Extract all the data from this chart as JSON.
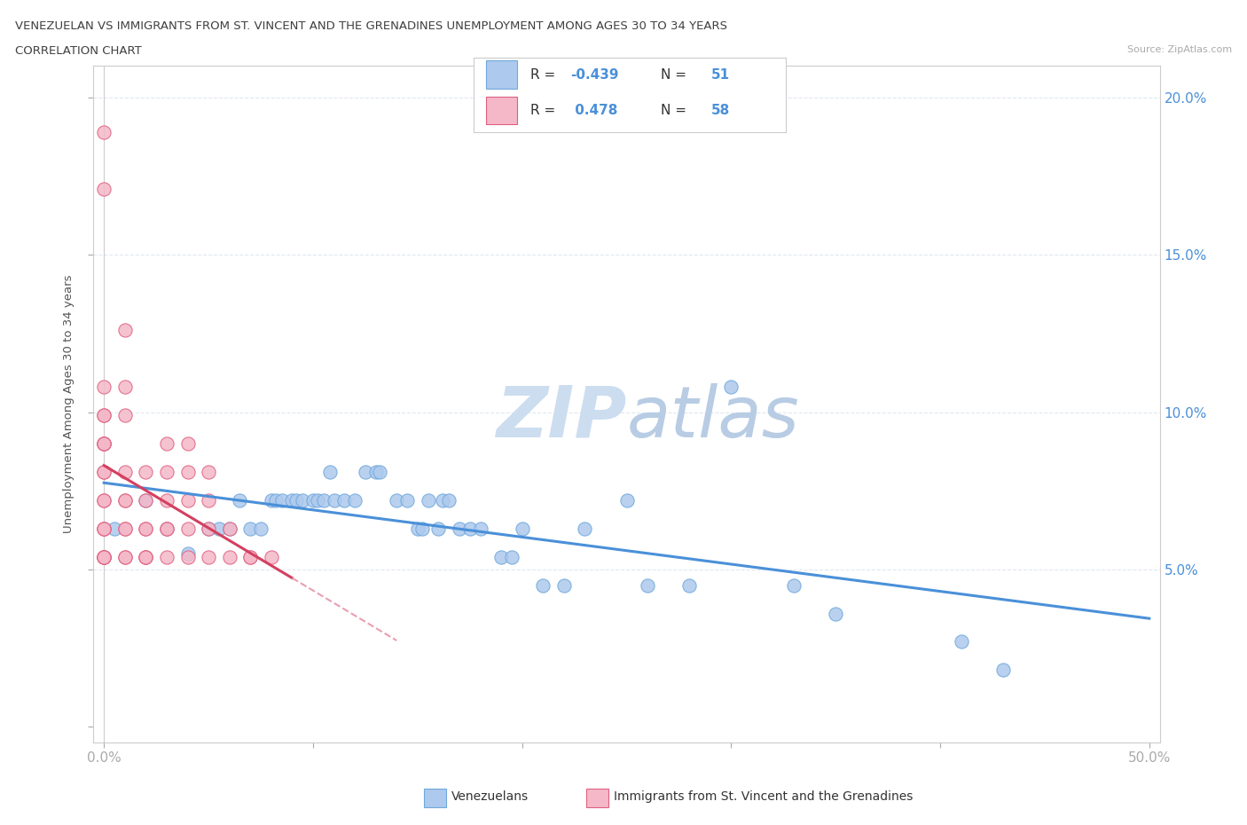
{
  "title_line1": "VENEZUELAN VS IMMIGRANTS FROM ST. VINCENT AND THE GRENADINES UNEMPLOYMENT AMONG AGES 30 TO 34 YEARS",
  "title_line2": "CORRELATION CHART",
  "source_text": "Source: ZipAtlas.com",
  "ylabel": "Unemployment Among Ages 30 to 34 years",
  "xlim": [
    -0.005,
    0.505
  ],
  "ylim": [
    -0.005,
    0.21
  ],
  "xticks": [
    0.0,
    0.1,
    0.2,
    0.3,
    0.4,
    0.5
  ],
  "xtick_labels": [
    "0.0%",
    "",
    "",
    "",
    "",
    "50.0%"
  ],
  "yticks_right": [
    0.05,
    0.1,
    0.15,
    0.2
  ],
  "ytick_labels_right": [
    "5.0%",
    "10.0%",
    "15.0%",
    "20.0%"
  ],
  "venezuelan_color": "#adc9ed",
  "venezuelan_edge": "#6fa8dc",
  "vincent_color": "#f4b8c8",
  "vincent_edge": "#e06080",
  "trend_venezuelan_color": "#4a90d9",
  "trend_vincent_solid_color": "#d44060",
  "trend_vincent_dash_color": "#e8a0b0",
  "watermark_color": "#ccddf0",
  "legend_r_venezuelan": "-0.439",
  "legend_n_venezuelan": "51",
  "legend_r_vincent": "0.478",
  "legend_n_vincent": "58",
  "venezuelan_x": [
    0.005,
    0.02,
    0.03,
    0.04,
    0.05,
    0.055,
    0.06,
    0.065,
    0.07,
    0.075,
    0.08,
    0.082,
    0.085,
    0.09,
    0.092,
    0.095,
    0.1,
    0.102,
    0.105,
    0.108,
    0.11,
    0.115,
    0.12,
    0.125,
    0.13,
    0.132,
    0.14,
    0.145,
    0.15,
    0.152,
    0.155,
    0.16,
    0.162,
    0.165,
    0.17,
    0.175,
    0.18,
    0.19,
    0.195,
    0.2,
    0.21,
    0.22,
    0.23,
    0.25,
    0.26,
    0.28,
    0.3,
    0.33,
    0.35,
    0.41,
    0.43
  ],
  "venezuelan_y": [
    0.063,
    0.072,
    0.063,
    0.055,
    0.063,
    0.063,
    0.063,
    0.072,
    0.063,
    0.063,
    0.072,
    0.072,
    0.072,
    0.072,
    0.072,
    0.072,
    0.072,
    0.072,
    0.072,
    0.081,
    0.072,
    0.072,
    0.072,
    0.081,
    0.081,
    0.081,
    0.072,
    0.072,
    0.063,
    0.063,
    0.072,
    0.063,
    0.072,
    0.072,
    0.063,
    0.063,
    0.063,
    0.054,
    0.054,
    0.063,
    0.045,
    0.045,
    0.063,
    0.072,
    0.045,
    0.045,
    0.108,
    0.045,
    0.036,
    0.027,
    0.018
  ],
  "vincent_x": [
    0.0,
    0.0,
    0.0,
    0.0,
    0.0,
    0.0,
    0.0,
    0.0,
    0.0,
    0.0,
    0.0,
    0.0,
    0.0,
    0.0,
    0.0,
    0.0,
    0.0,
    0.0,
    0.0,
    0.0,
    0.0,
    0.01,
    0.01,
    0.01,
    0.01,
    0.01,
    0.01,
    0.01,
    0.01,
    0.01,
    0.01,
    0.02,
    0.02,
    0.02,
    0.02,
    0.02,
    0.02,
    0.02,
    0.03,
    0.03,
    0.03,
    0.03,
    0.03,
    0.03,
    0.04,
    0.04,
    0.04,
    0.04,
    0.04,
    0.05,
    0.05,
    0.05,
    0.05,
    0.06,
    0.06,
    0.07,
    0.07,
    0.08
  ],
  "vincent_y": [
    0.054,
    0.054,
    0.054,
    0.054,
    0.054,
    0.063,
    0.063,
    0.063,
    0.072,
    0.072,
    0.081,
    0.081,
    0.09,
    0.09,
    0.09,
    0.09,
    0.099,
    0.099,
    0.108,
    0.171,
    0.189,
    0.054,
    0.054,
    0.063,
    0.063,
    0.072,
    0.072,
    0.081,
    0.099,
    0.108,
    0.126,
    0.054,
    0.054,
    0.054,
    0.063,
    0.063,
    0.072,
    0.081,
    0.054,
    0.063,
    0.063,
    0.072,
    0.081,
    0.09,
    0.054,
    0.063,
    0.072,
    0.081,
    0.09,
    0.054,
    0.063,
    0.072,
    0.081,
    0.054,
    0.063,
    0.054,
    0.054,
    0.054
  ],
  "background_color": "#ffffff",
  "grid_color": "#e0e8f0",
  "grid_style": "--"
}
